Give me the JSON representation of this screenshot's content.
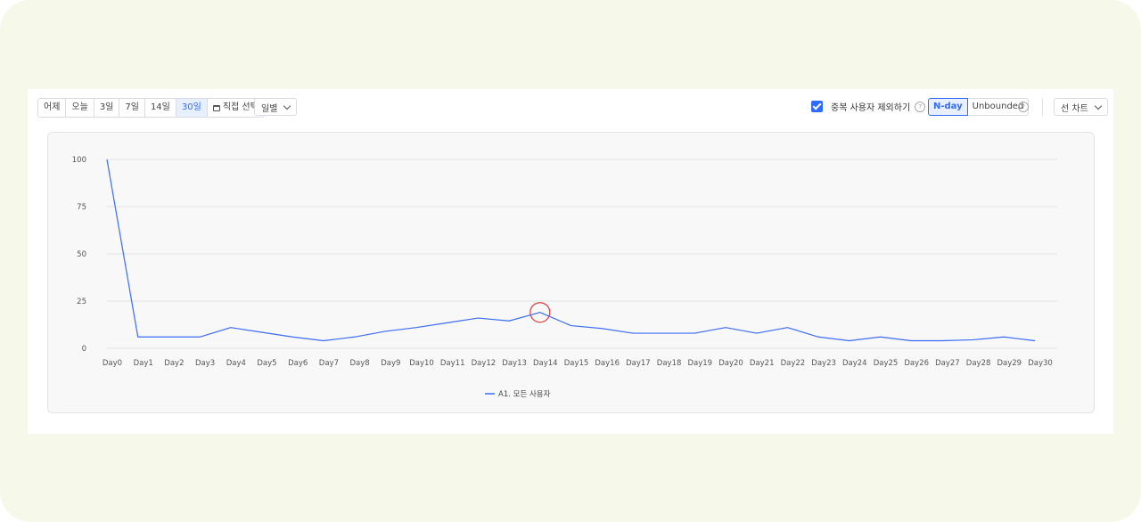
{
  "toolbar": {
    "ranges": [
      "어제",
      "오늘",
      "3일",
      "7일",
      "14일",
      "30일"
    ],
    "active_range": "30일",
    "custom_range_label": "직접 선택",
    "interval_label": "일별",
    "exclude_duplicates_label": "중복 사용자 제외하기",
    "help_glyph": "?",
    "mode_nday": "N-day",
    "mode_unbounded": "Unbounded",
    "chart_type_label": "선 차트"
  },
  "colors": {
    "series": "#3b6cf6",
    "highlight": "#e23b3b",
    "accent": "#2f6bff"
  },
  "chart_data": {
    "type": "line",
    "categories": [
      "Day0",
      "Day1",
      "Day2",
      "Day3",
      "Day4",
      "Day5",
      "Day6",
      "Day7",
      "Day8",
      "Day9",
      "Day10",
      "Day11",
      "Day12",
      "Day13",
      "Day14",
      "Day15",
      "Day16",
      "Day17",
      "Day18",
      "Day19",
      "Day20",
      "Day21",
      "Day22",
      "Day23",
      "Day24",
      "Day25",
      "Day26",
      "Day27",
      "Day28",
      "Day29",
      "Day30"
    ],
    "y_ticks": [
      0,
      25,
      50,
      75,
      100
    ],
    "ylim": [
      0,
      100
    ],
    "grid": true,
    "legend_position": "bottom",
    "highlighted_category": "Day14",
    "series": [
      {
        "name": "A1. 모든 사용자",
        "values": [
          100,
          6,
          6,
          6,
          11,
          8.5,
          6,
          4,
          6,
          9,
          11,
          13.5,
          16,
          14.5,
          19,
          12,
          10.5,
          8,
          8,
          8,
          11,
          8,
          11,
          6,
          4,
          6,
          4,
          4,
          4.5,
          6,
          4
        ]
      }
    ]
  }
}
